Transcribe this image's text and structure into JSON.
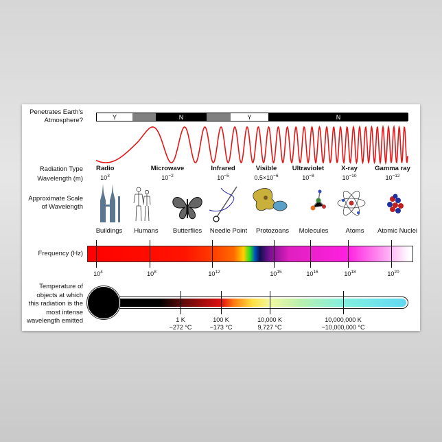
{
  "atmosphere": {
    "label_line1": "Penetrates Earth's",
    "label_line2": "Atmosphere?",
    "segments": [
      {
        "text": "Y",
        "shade": "#ffffff"
      },
      {
        "text": "",
        "shade": "#808080"
      },
      {
        "text": "N",
        "shade": "#000000"
      },
      {
        "text": "",
        "shade": "#808080"
      },
      {
        "text": "Y",
        "shade": "#ffffff"
      },
      {
        "text": "N",
        "shade": "#000000"
      }
    ]
  },
  "wave_color": "#e01818",
  "row_labels": {
    "radiation_type": "Radiation Type",
    "wavelength": "Wavelength (m)",
    "scale_line1": "Approximate Scale",
    "scale_line2": "of Wavelength",
    "frequency": "Frequency (Hz)",
    "temp_line1": "Temperature of",
    "temp_line2": "objects at which",
    "temp_line3": "this radiation is the",
    "temp_line4": "most intense",
    "temp_line5": "wavelength emitted"
  },
  "radiation_types": [
    {
      "name": "Radio",
      "base": "10",
      "exp": "3"
    },
    {
      "name": "Microwave",
      "base": "10",
      "exp": "−2"
    },
    {
      "name": "Infrared",
      "base": "10",
      "exp": "−5"
    },
    {
      "name": "Visible",
      "base": "0.5×10",
      "exp": "−6"
    },
    {
      "name": "Ultraviolet",
      "base": "10",
      "exp": "−8"
    },
    {
      "name": "X-ray",
      "base": "10",
      "exp": "−10"
    },
    {
      "name": "Gamma ray",
      "base": "10",
      "exp": "−12"
    }
  ],
  "scale_objects": [
    {
      "label": "Buildings",
      "icon": "buildings-icon"
    },
    {
      "label": "Humans",
      "icon": "humans-icon"
    },
    {
      "label": "Butterflies",
      "icon": "butterfly-icon"
    },
    {
      "label": "Needle Point",
      "icon": "needle-icon"
    },
    {
      "label": "Protozoans",
      "icon": "protozoan-icon"
    },
    {
      "label": "Molecules",
      "icon": "molecule-icon"
    },
    {
      "label": "Atoms",
      "icon": "atom-icon"
    },
    {
      "label": "Atomic Nuclei",
      "icon": "nucleus-icon"
    }
  ],
  "frequency_ticks": [
    {
      "base": "10",
      "exp": "4"
    },
    {
      "base": "10",
      "exp": "8"
    },
    {
      "base": "10",
      "exp": "12"
    },
    {
      "base": "10",
      "exp": "15"
    },
    {
      "base": "10",
      "exp": "16"
    },
    {
      "base": "10",
      "exp": "18"
    },
    {
      "base": "10",
      "exp": "20"
    }
  ],
  "temperatures": [
    {
      "kelvin": "1 K",
      "celsius": "−272 °C"
    },
    {
      "kelvin": "100 K",
      "celsius": "−173 °C"
    },
    {
      "kelvin": "10,000 K",
      "celsius": "9,727 °C"
    },
    {
      "kelvin": "10,000,000 K",
      "celsius": "~10,000,000 °C"
    }
  ]
}
